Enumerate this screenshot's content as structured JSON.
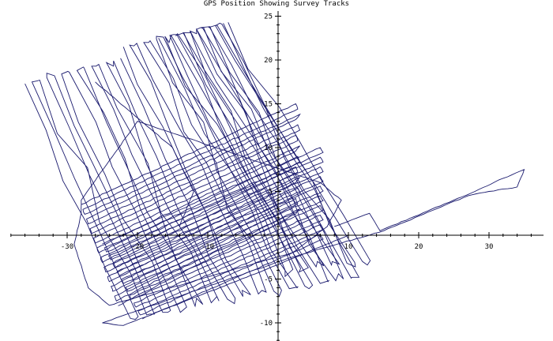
{
  "chart_data": {
    "type": "line",
    "title": "GPS Position Showing Survey Tracks",
    "xlabel": "",
    "ylabel": "",
    "xlim": [
      -38,
      37
    ],
    "ylim": [
      -12,
      25.5
    ],
    "x_ticks": [
      -30,
      -20,
      -10,
      10,
      20,
      30
    ],
    "y_ticks": [
      -10,
      -5,
      5,
      10,
      15,
      20,
      25
    ],
    "x_tick_labels": [
      "-30",
      "-20",
      "-10",
      "10",
      "20",
      "30"
    ],
    "y_tick_labels": [
      "-10",
      "-5",
      "5",
      "10",
      "15",
      "20",
      "25"
    ],
    "grid": false,
    "line_color": "#1a1a6e",
    "series": [
      {
        "name": "",
        "x": [
          -29.0,
          -27.0,
          -25.0,
          -23.0,
          -21.0,
          -19.0,
          -17.0,
          -15.0,
          -13.0,
          -11.0,
          -9.0,
          -7.0,
          -5.0,
          -3.0,
          -1.0,
          1.0,
          3.0,
          5.0,
          7.0,
          9.0
        ],
        "y": [
          1.5,
          2.2,
          2.9,
          3.6,
          4.3,
          5.0,
          5.7,
          6.4,
          7.1,
          7.8,
          8.5,
          9.2,
          9.9,
          10.6,
          11.3,
          12.0,
          12.7,
          13.4,
          14.1,
          14.8
        ]
      }
    ]
  }
}
